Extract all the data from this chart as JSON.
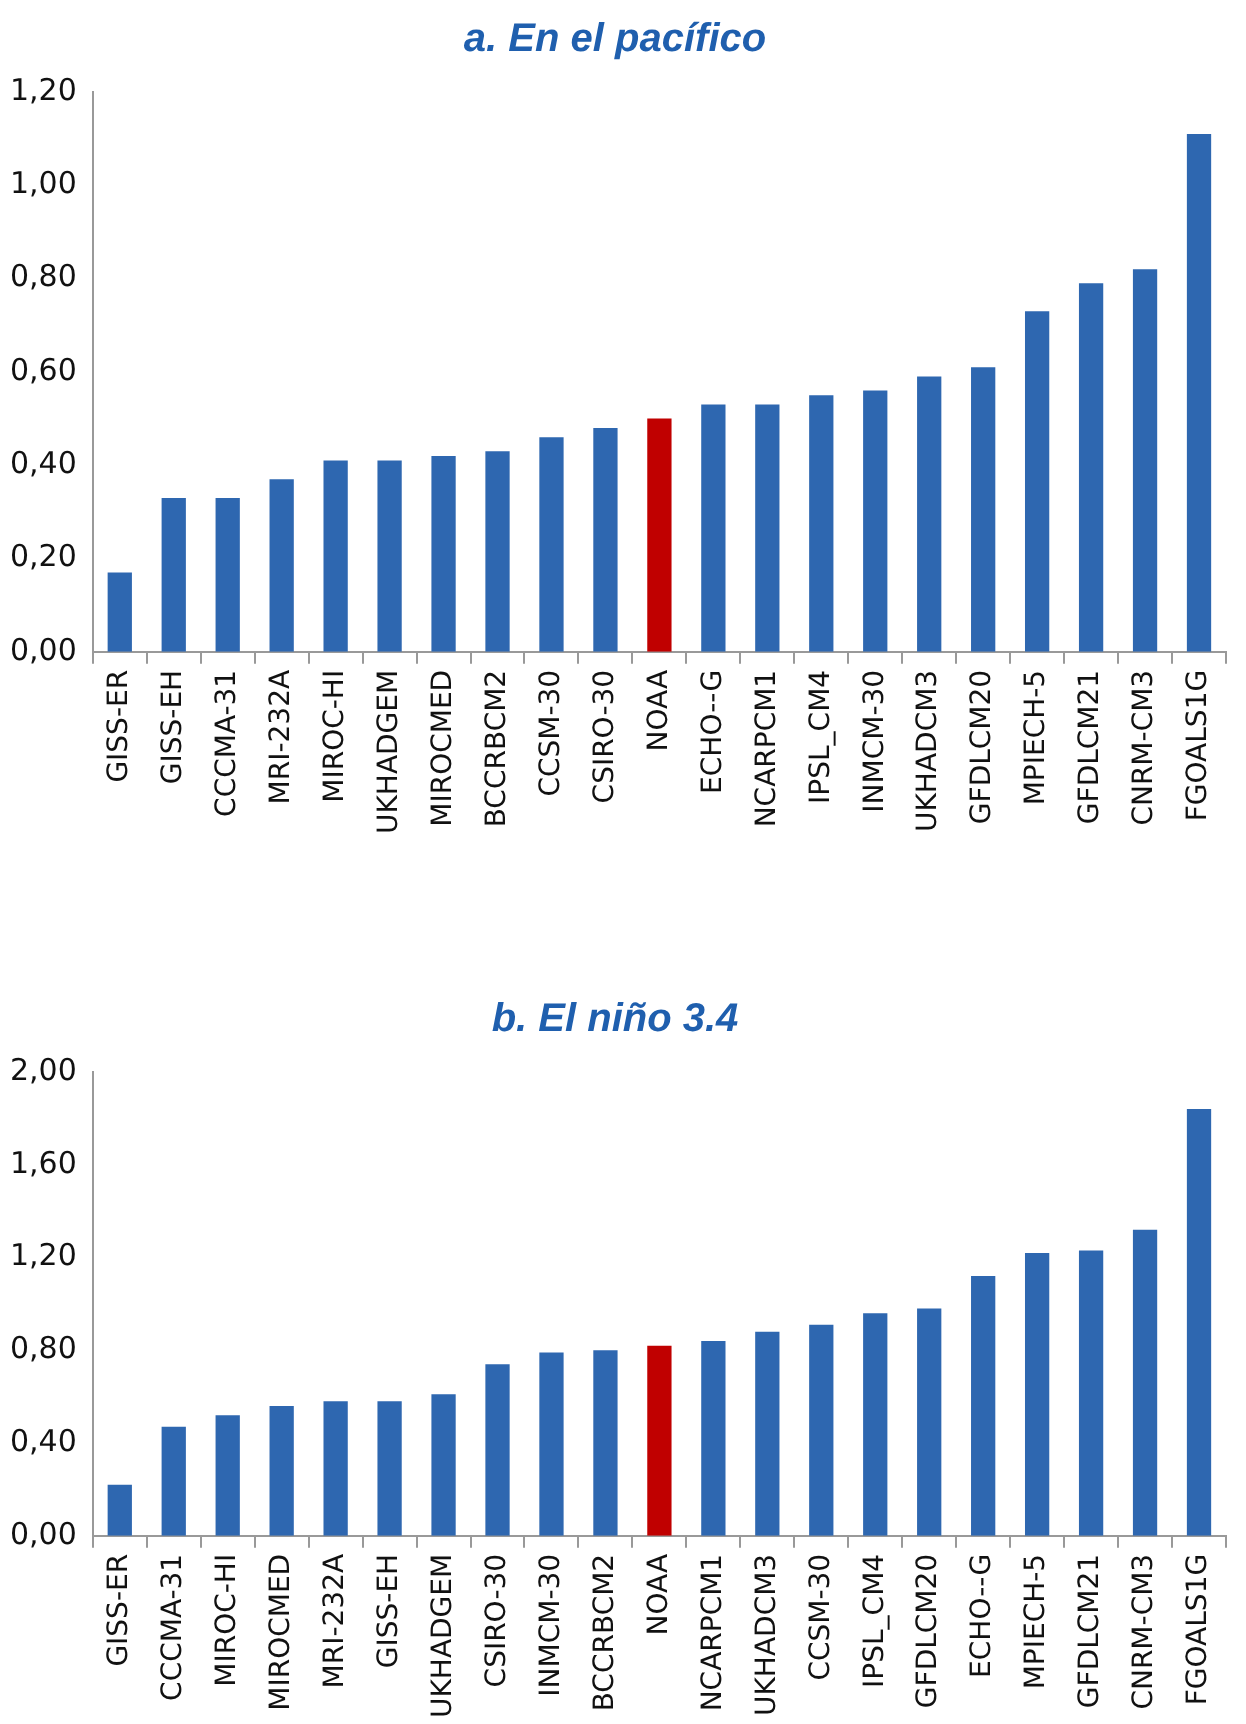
{
  "chart_data": [
    {
      "type": "bar",
      "title": "a. En el pacífico",
      "categories": [
        "GISS-ER",
        "GISS-EH",
        "CCCMA-31",
        "MRI-232A",
        "MIROC-HI",
        "UKHADGEM",
        "MIROCMED",
        "BCCRBCM2",
        "CCSM-30",
        "CSIRO-30",
        "NOAA",
        "ECHO--G",
        "NCARPCM1",
        "IPSL_CM4",
        "INMCM-30",
        "UKHADCM3",
        "GFDLCM20",
        "MPIECH-5",
        "GFDLCM21",
        "CNRM-CM3",
        "FGOALS1G"
      ],
      "values": [
        0.17,
        0.33,
        0.33,
        0.37,
        0.41,
        0.41,
        0.42,
        0.43,
        0.46,
        0.48,
        0.5,
        0.53,
        0.53,
        0.55,
        0.56,
        0.59,
        0.61,
        0.73,
        0.79,
        0.82,
        1.11
      ],
      "colors": [
        "#2e67b0",
        "#2e67b0",
        "#2e67b0",
        "#2e67b0",
        "#2e67b0",
        "#2e67b0",
        "#2e67b0",
        "#2e67b0",
        "#2e67b0",
        "#2e67b0",
        "#c00000",
        "#2e67b0",
        "#2e67b0",
        "#2e67b0",
        "#2e67b0",
        "#2e67b0",
        "#2e67b0",
        "#2e67b0",
        "#2e67b0",
        "#2e67b0",
        "#2e67b0"
      ],
      "ylim": [
        0,
        1.2
      ],
      "yticks": [
        {
          "value": 0,
          "label": "0,00"
        },
        {
          "value": 0.2,
          "label": "0,20"
        },
        {
          "value": 0.4,
          "label": "0,40"
        },
        {
          "value": 0.6,
          "label": "0,60"
        },
        {
          "value": 0.8,
          "label": "0,80"
        },
        {
          "value": 1.0,
          "label": "1,00"
        },
        {
          "value": 1.2,
          "label": "1,20"
        }
      ],
      "grid": false,
      "legend": false
    },
    {
      "type": "bar",
      "title": "b. El niño 3.4",
      "categories": [
        "GISS-ER",
        "CCCMA-31",
        "MIROC-HI",
        "MIROCMED",
        "MRI-232A",
        "GISS-EH",
        "UKHADGEM",
        "CSIRO-30",
        "INMCM-30",
        "BCCRBCM2",
        "NOAA",
        "NCARPCM1",
        "UKHADCM3",
        "CCSM-30",
        "IPSL_CM4",
        "GFDLCM20",
        "ECHO--G",
        "MPIECH-5",
        "GFDLCM21",
        "CNRM-CM3",
        "FGOALS1G"
      ],
      "values": [
        0.22,
        0.47,
        0.52,
        0.56,
        0.58,
        0.58,
        0.61,
        0.74,
        0.79,
        0.8,
        0.82,
        0.84,
        0.88,
        0.91,
        0.96,
        0.98,
        1.12,
        1.22,
        1.23,
        1.32,
        1.84
      ],
      "colors": [
        "#2e67b0",
        "#2e67b0",
        "#2e67b0",
        "#2e67b0",
        "#2e67b0",
        "#2e67b0",
        "#2e67b0",
        "#2e67b0",
        "#2e67b0",
        "#2e67b0",
        "#c00000",
        "#2e67b0",
        "#2e67b0",
        "#2e67b0",
        "#2e67b0",
        "#2e67b0",
        "#2e67b0",
        "#2e67b0",
        "#2e67b0",
        "#2e67b0",
        "#2e67b0"
      ],
      "ylim": [
        0,
        2.0
      ],
      "yticks": [
        {
          "value": 0,
          "label": "0,00"
        },
        {
          "value": 0.4,
          "label": "0,40"
        },
        {
          "value": 0.8,
          "label": "0,80"
        },
        {
          "value": 1.2,
          "label": "1,20"
        },
        {
          "value": 1.6,
          "label": "1,60"
        },
        {
          "value": 2.0,
          "label": "2,00"
        }
      ],
      "grid": false,
      "legend": false
    }
  ]
}
